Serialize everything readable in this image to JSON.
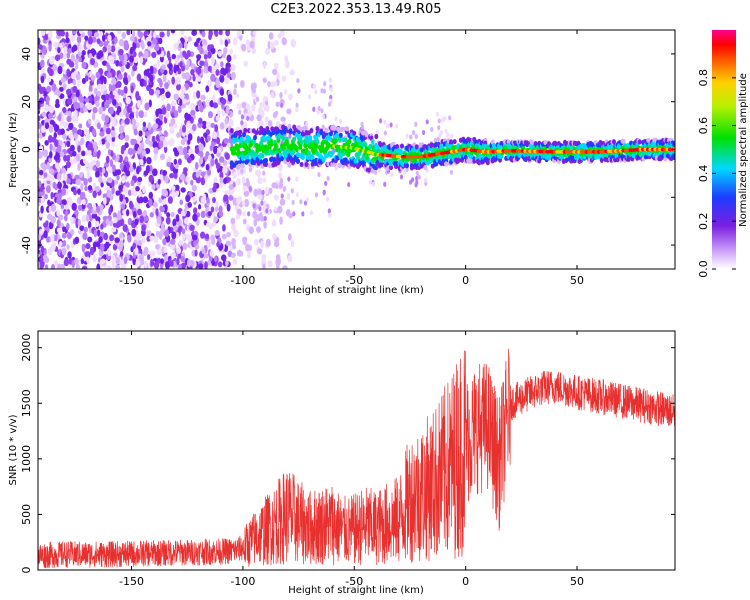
{
  "figure": {
    "title": "C2E3.2022.353.13.49.R05"
  },
  "chart_data": [
    {
      "type": "heatmap",
      "title": "C2E3.2022.353.13.49.R05",
      "xlabel": "Height of straight line (km)",
      "ylabel": "Frequency (Hz)",
      "xlim": [
        -192,
        94
      ],
      "ylim": [
        -50,
        50
      ],
      "x_ticks": [
        -150,
        -100,
        -50,
        0,
        50
      ],
      "x_tick_labels": [
        "-150",
        "-100",
        "-50",
        "0",
        "50"
      ],
      "y_ticks": [
        40,
        20,
        0,
        -20,
        -40
      ],
      "y_tick_labels": [
        "40",
        "20",
        "0",
        "-20",
        "-40"
      ],
      "colorbar": {
        "label": "Normalized spectral amplitude",
        "range": [
          0.0,
          1.0
        ],
        "ticks": [
          0.0,
          0.2,
          0.4,
          0.6,
          0.8
        ],
        "tick_labels": [
          "0.0",
          "0.2",
          "0.4",
          "0.6",
          "0.8"
        ],
        "colormap": "rainbow (white-violet-blue-cyan-green-yellow-orange-red-magenta)"
      },
      "signal_ridge_frequency_hz": [
        {
          "x": -105,
          "y": 0.0
        },
        {
          "x": -90,
          "y": 1.0
        },
        {
          "x": -80,
          "y": 2.0
        },
        {
          "x": -70,
          "y": 0.5
        },
        {
          "x": -60,
          "y": 1.5
        },
        {
          "x": -50,
          "y": 0.5
        },
        {
          "x": -40,
          "y": -2.0
        },
        {
          "x": -30,
          "y": -3.0
        },
        {
          "x": -20,
          "y": -3.0
        },
        {
          "x": -10,
          "y": -1.5
        },
        {
          "x": 0,
          "y": 0.0
        },
        {
          "x": 10,
          "y": -1.0
        },
        {
          "x": 20,
          "y": -0.5
        },
        {
          "x": 40,
          "y": -1.0
        },
        {
          "x": 60,
          "y": -1.0
        },
        {
          "x": 80,
          "y": 0.0
        },
        {
          "x": 94,
          "y": 0.0
        }
      ],
      "grid": false
    },
    {
      "type": "line",
      "xlabel": "Height of straight line (km)",
      "ylabel": "SNR (10 * v/v)",
      "xlim": [
        -192,
        94
      ],
      "ylim": [
        0,
        2150
      ],
      "x_ticks": [
        -150,
        -100,
        -50,
        0,
        50
      ],
      "x_tick_labels": [
        "-150",
        "-100",
        "-50",
        "0",
        "50"
      ],
      "y_ticks": [
        0,
        500,
        1000,
        1500,
        2000
      ],
      "y_tick_labels": [
        "0",
        "500",
        "1000",
        "1500",
        "2000"
      ],
      "series": [
        {
          "color": "#e8302f",
          "x": [
            -192,
            -180,
            -160,
            -140,
            -120,
            -105,
            -100,
            -95,
            -90,
            -85,
            -80,
            -75,
            -70,
            -65,
            -60,
            -55,
            -50,
            -45,
            -40,
            -35,
            -30,
            -25,
            -20,
            -15,
            -10,
            -5,
            0,
            5,
            10,
            15,
            20,
            25,
            30,
            35,
            40,
            45,
            50,
            55,
            60,
            65,
            70,
            75,
            80,
            85,
            90,
            94
          ],
          "y": [
            130,
            140,
            140,
            150,
            160,
            170,
            200,
            280,
            350,
            420,
            500,
            430,
            380,
            400,
            420,
            350,
            360,
            400,
            380,
            420,
            450,
            650,
            700,
            760,
            860,
            980,
            1150,
            1280,
            1300,
            950,
            1500,
            1550,
            1600,
            1640,
            1650,
            1630,
            1600,
            1580,
            1560,
            1540,
            1520,
            1500,
            1480,
            1460,
            1440,
            1420
          ]
        }
      ],
      "grid": false
    }
  ]
}
